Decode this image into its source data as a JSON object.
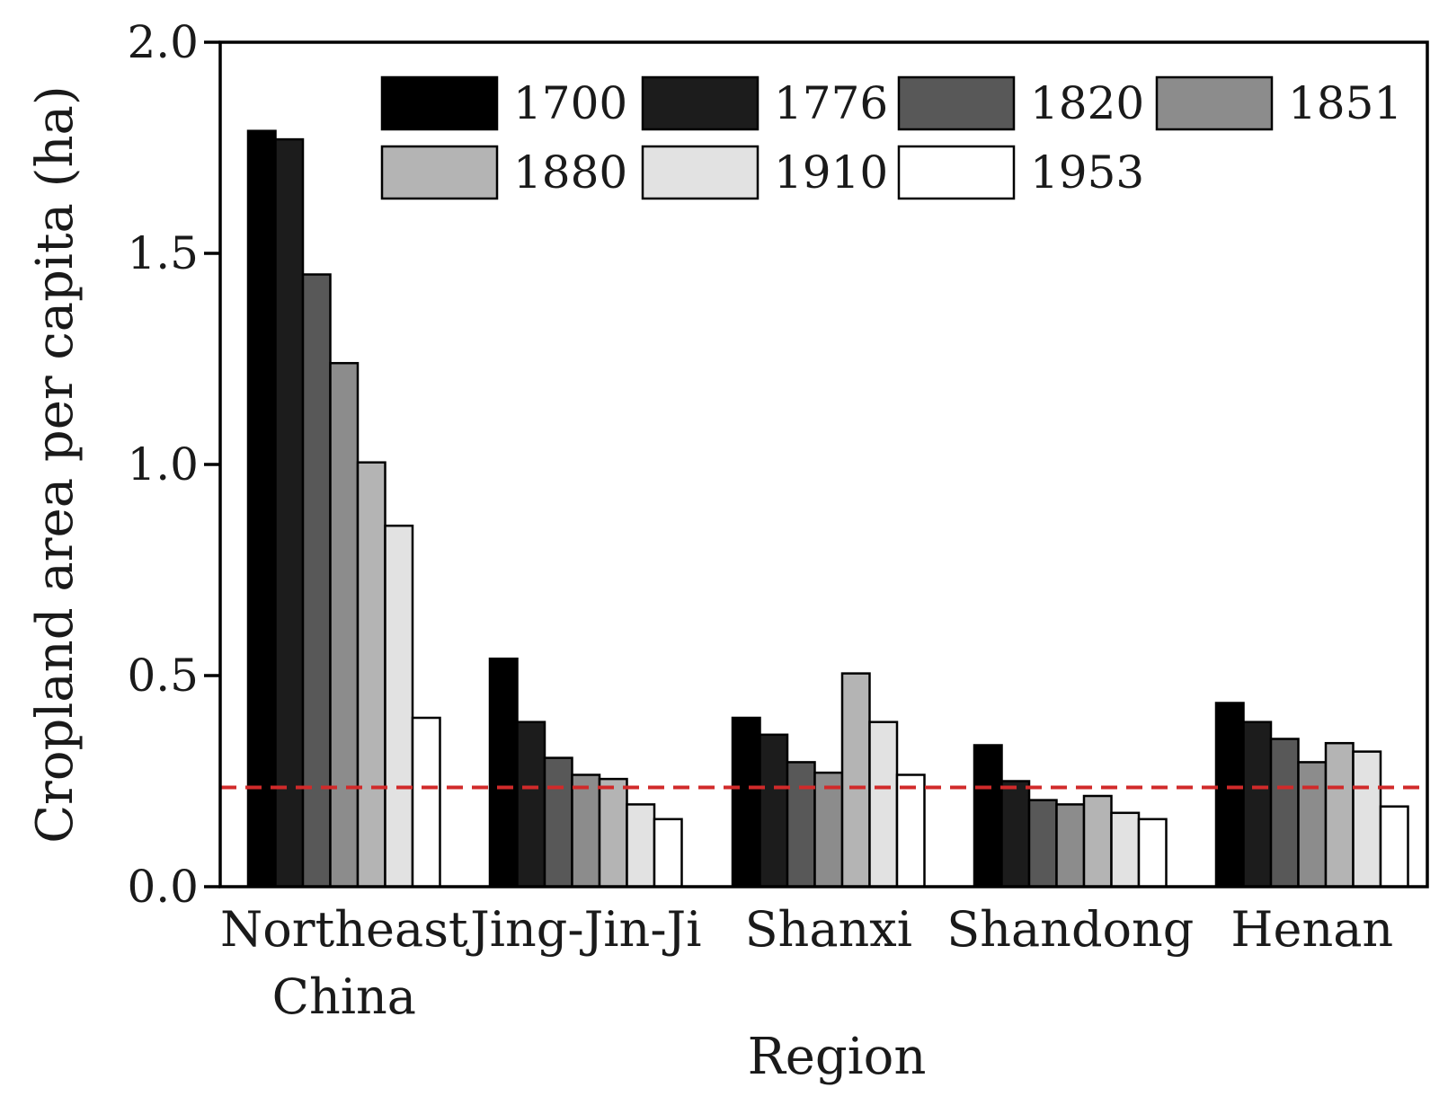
{
  "chart_data": {
    "type": "bar",
    "xlabel": "Region",
    "ylabel": "Cropland area per capita (ha)",
    "ylim": [
      0.0,
      2.0
    ],
    "yticks": [
      "0.0",
      "0.5",
      "1.0",
      "1.5",
      "2.0"
    ],
    "ytick_values": [
      0.0,
      0.5,
      1.0,
      1.5,
      2.0
    ],
    "categories": [
      [
        "Northeast",
        "China"
      ],
      [
        "Jing-Jin-Ji"
      ],
      [
        "Shanxi"
      ],
      [
        "Shandong"
      ],
      [
        "Henan"
      ]
    ],
    "series": [
      {
        "name": "1700",
        "color": "#000000",
        "values": [
          1.79,
          0.54,
          0.4,
          0.335,
          0.435
        ]
      },
      {
        "name": "1776",
        "color": "#1c1c1c",
        "values": [
          1.77,
          0.39,
          0.36,
          0.25,
          0.39
        ]
      },
      {
        "name": "1820",
        "color": "#585858",
        "values": [
          1.45,
          0.305,
          0.295,
          0.205,
          0.35
        ]
      },
      {
        "name": "1851",
        "color": "#8c8c8c",
        "values": [
          1.24,
          0.265,
          0.27,
          0.195,
          0.295
        ]
      },
      {
        "name": "1880",
        "color": "#b4b4b4",
        "values": [
          1.005,
          0.255,
          0.505,
          0.215,
          0.34
        ]
      },
      {
        "name": "1910",
        "color": "#e2e2e2",
        "values": [
          0.855,
          0.195,
          0.39,
          0.175,
          0.32
        ]
      },
      {
        "name": "1953",
        "color": "#ffffff",
        "values": [
          0.4,
          0.16,
          0.265,
          0.16,
          0.19
        ]
      }
    ],
    "reference_line": {
      "value": 0.235,
      "color": "#d12a2a",
      "style": "dashed"
    },
    "legend": {
      "placement": "top-right",
      "columns": 4
    },
    "grid": false
  }
}
